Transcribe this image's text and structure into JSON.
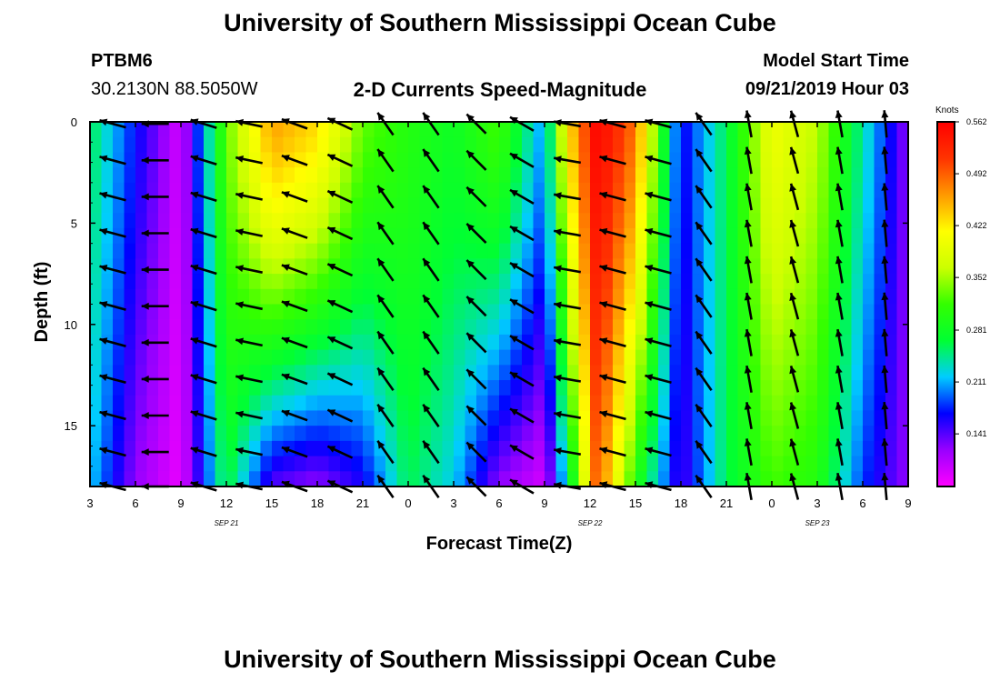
{
  "header": {
    "title": "University of Southern Mississippi Ocean Cube",
    "footer_title": "University of Southern Mississippi Ocean Cube",
    "station_id": "PTBM6",
    "station_coords": "30.2130N 88.5050W",
    "plot_title": "2-D Currents Speed-Magnitude",
    "model_start_label": "Model Start Time",
    "model_start_value": "09/21/2019 Hour 03"
  },
  "colors": {
    "arrow": "#000000",
    "colormap": [
      "#ff00ff",
      "#9900ff",
      "#0000ff",
      "#00ccff",
      "#00ff33",
      "#33ff00",
      "#ccff00",
      "#ffff00",
      "#ff9900",
      "#ff3300",
      "#ff0000"
    ]
  },
  "chart_data": {
    "type": "heatmap",
    "xlabel": "Forecast Time(Z)",
    "ylabel": "Depth (ft)",
    "x_tick_labels": [
      "3",
      "6",
      "9",
      "12",
      "15",
      "18",
      "21",
      "0",
      "3",
      "6",
      "9",
      "12",
      "15",
      "18",
      "21",
      "0",
      "3",
      "6",
      "9"
    ],
    "x_hours": [
      0,
      3,
      6,
      9,
      12,
      15,
      18,
      21,
      24,
      27,
      30,
      33,
      36,
      39,
      42,
      45,
      48,
      51,
      54
    ],
    "date_labels": [
      {
        "label": "SEP 21",
        "hour": 9
      },
      {
        "label": "SEP 22",
        "hour": 33
      },
      {
        "label": "SEP 23",
        "hour": 48
      }
    ],
    "y_tick_labels": [
      "0",
      "5",
      "10",
      "15"
    ],
    "y_ticks": [
      0,
      5,
      10,
      15
    ],
    "ylim": [
      0,
      18
    ],
    "colorbar": {
      "label": "Knots",
      "ticks": [
        "0.562",
        "0.492",
        "0.422",
        "0.352",
        "0.281",
        "0.211",
        "0.141"
      ],
      "tick_values": [
        0.562,
        0.492,
        0.422,
        0.352,
        0.281,
        0.211,
        0.141
      ],
      "range": [
        0.07,
        0.562
      ]
    },
    "arrow_columns_hours": [
      1.5,
      4.3,
      7.5,
      10.5,
      13.5,
      16.5,
      19.5,
      22.5,
      25.5,
      28.5,
      31.5,
      34.5,
      37.5,
      40.5,
      43.5,
      46.5,
      49.5,
      52.5
    ],
    "arrow_rows_depth": [
      0.1,
      1.9,
      3.7,
      5.5,
      7.3,
      9.1,
      10.9,
      12.7,
      14.5,
      16.3,
      18.0
    ],
    "arrow_directions_deg": [
      165,
      180,
      163,
      168,
      160,
      155,
      125,
      125,
      135,
      150,
      170,
      165,
      165,
      125,
      100,
      105,
      100,
      95
    ],
    "speed_profile_hours": [
      0,
      3,
      6,
      9,
      12,
      15,
      18,
      21,
      24,
      27,
      30,
      31.5,
      33.5,
      36,
      39,
      42,
      45,
      48,
      51,
      54
    ],
    "speed_surface_knots": [
      0.26,
      0.17,
      0.09,
      0.33,
      0.46,
      0.43,
      0.33,
      0.3,
      0.28,
      0.32,
      0.2,
      0.42,
      0.56,
      0.48,
      0.16,
      0.26,
      0.4,
      0.36,
      0.24,
      0.12
    ],
    "speed_bottom_knots": [
      0.22,
      0.12,
      0.08,
      0.27,
      0.14,
      0.12,
      0.16,
      0.26,
      0.22,
      0.12,
      0.09,
      0.24,
      0.5,
      0.3,
      0.14,
      0.26,
      0.32,
      0.3,
      0.18,
      0.12
    ]
  }
}
